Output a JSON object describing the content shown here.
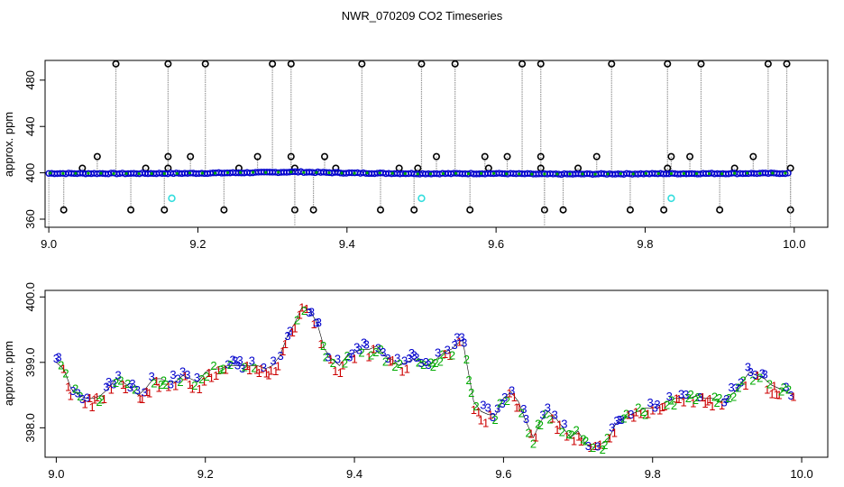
{
  "page_title": "NWR_070209  CO2 Timeseries",
  "colors": {
    "background": "#ffffff",
    "spike_marker": "#000000",
    "main_series": "#0000cc",
    "flag_series": "#33dddd",
    "vertical_lines": "#999999",
    "series_1": "#cc0000",
    "series_2": "#00aa00",
    "series_3": "#0000cc"
  },
  "chart_data": [
    {
      "type": "scatter",
      "title": "NWR_070209  CO2 Timeseries",
      "xlabel": "",
      "ylabel": "approx. ppm",
      "xlim": [
        8.995,
        10.045
      ],
      "ylim": [
        353,
        497
      ],
      "x_ticks": [
        9.0,
        9.2,
        9.4,
        9.6,
        9.8,
        10.0
      ],
      "x_tick_labels": [
        "9.0",
        "9.2",
        "9.4",
        "9.6",
        "9.8",
        "10.0"
      ],
      "y_ticks": [
        360,
        400,
        440,
        480
      ],
      "y_tick_labels": [
        "360",
        "400",
        "440",
        "480"
      ],
      "grid": false,
      "baseline": {
        "name": "",
        "x": [
          9.0,
          9.1,
          9.2,
          9.3,
          9.33,
          9.4,
          9.5,
          9.6,
          9.66,
          9.7,
          9.8,
          9.9,
          10.0
        ],
        "y": [
          399.5,
          399.4,
          399.6,
          400.4,
          400.8,
          399.9,
          399.3,
          399.4,
          398.9,
          398.9,
          399.2,
          399.4,
          399.6
        ]
      },
      "high_spikes_494": [
        9.09,
        9.16,
        9.21,
        9.3,
        9.325,
        9.42,
        9.5,
        9.545,
        9.635,
        9.66,
        9.755,
        9.83,
        9.875,
        9.965,
        9.99
      ],
      "mid_spikes_414": [
        9.065,
        9.16,
        9.19,
        9.28,
        9.325,
        9.37,
        9.52,
        9.585,
        9.615,
        9.66,
        9.735,
        9.835,
        9.86,
        9.945
      ],
      "small_spikes_404": [
        9.045,
        9.13,
        9.16,
        9.255,
        9.33,
        9.385,
        9.47,
        9.495,
        9.59,
        9.66,
        9.71,
        9.83,
        9.92,
        9.995
      ],
      "low_spikes_368": [
        9.02,
        9.11,
        9.155,
        9.235,
        9.33,
        9.355,
        9.445,
        9.49,
        9.565,
        9.665,
        9.69,
        9.78,
        9.825,
        9.9,
        9.995
      ],
      "flag_points": {
        "x": [
          9.165,
          9.5,
          9.835
        ],
        "y": [
          378,
          378,
          378
        ]
      }
    },
    {
      "type": "line",
      "title": "",
      "xlabel": "",
      "ylabel": "approx. ppm",
      "xlim": [
        8.985,
        10.035
      ],
      "ylim": [
        397.55,
        400.1
      ],
      "x_ticks": [
        9.0,
        9.2,
        9.4,
        9.6,
        9.8,
        10.0
      ],
      "x_tick_labels": [
        "9.0",
        "9.2",
        "9.4",
        "9.6",
        "9.8",
        "10.0"
      ],
      "y_ticks": [
        398.0,
        399.0,
        400.0
      ],
      "y_tick_labels": [
        "398.0",
        "399.0",
        "400.0"
      ],
      "grid": false,
      "marker_labels": [
        "1",
        "2",
        "3"
      ],
      "series": [
        {
          "name": "",
          "x": [
            9.0,
            9.01,
            9.02,
            9.03,
            9.04,
            9.05,
            9.06,
            9.07,
            9.08,
            9.09,
            9.1,
            9.11,
            9.12,
            9.13,
            9.14,
            9.15,
            9.16,
            9.17,
            9.18,
            9.19,
            9.2,
            9.21,
            9.22,
            9.23,
            9.24,
            9.25,
            9.26,
            9.27,
            9.28,
            9.29,
            9.3,
            9.31,
            9.32,
            9.33,
            9.34,
            9.35,
            9.36,
            9.37,
            9.38,
            9.39,
            9.4,
            9.41,
            9.42,
            9.43,
            9.44,
            9.45,
            9.46,
            9.47,
            9.48,
            9.49,
            9.5,
            9.51,
            9.52,
            9.53,
            9.54,
            9.545,
            9.56,
            9.57,
            9.58,
            9.59,
            9.6,
            9.61,
            9.62,
            9.63,
            9.64,
            9.65,
            9.66,
            9.67,
            9.68,
            9.69,
            9.7,
            9.71,
            9.72,
            9.73,
            9.74,
            9.75,
            9.76,
            9.77,
            9.78,
            9.79,
            9.8,
            9.81,
            9.82,
            9.83,
            9.84,
            9.85,
            9.86,
            9.87,
            9.88,
            9.89,
            9.9,
            9.91,
            9.92,
            9.93,
            9.94,
            9.95,
            9.96,
            9.97,
            9.98,
            9.99
          ],
          "values": [
            399.0,
            398.9,
            398.6,
            398.5,
            398.45,
            398.45,
            398.5,
            398.6,
            398.75,
            398.7,
            398.6,
            398.5,
            398.6,
            398.75,
            398.75,
            398.7,
            398.7,
            398.8,
            398.75,
            398.7,
            398.85,
            398.9,
            398.9,
            398.95,
            398.95,
            398.95,
            398.95,
            398.95,
            398.9,
            398.95,
            399.1,
            399.4,
            399.6,
            399.85,
            399.8,
            399.6,
            399.2,
            399.05,
            398.95,
            399.1,
            399.15,
            399.2,
            399.2,
            399.25,
            399.1,
            399.05,
            398.95,
            399.0,
            399.05,
            399.0,
            398.95,
            399.05,
            399.15,
            399.2,
            399.3,
            399.35,
            398.4,
            398.25,
            398.2,
            398.2,
            398.45,
            398.55,
            398.4,
            398.1,
            397.85,
            398.1,
            398.25,
            398.15,
            398.0,
            397.85,
            397.95,
            397.75,
            397.7,
            397.75,
            397.8,
            398.05,
            398.15,
            398.2,
            398.25,
            398.3,
            398.3,
            398.35,
            398.4,
            398.45,
            398.45,
            398.45,
            398.5,
            398.45,
            398.45,
            398.4,
            398.45,
            398.55,
            398.7,
            398.85,
            398.8,
            398.75,
            398.65,
            398.6,
            398.55,
            398.5
          ]
        }
      ]
    }
  ]
}
